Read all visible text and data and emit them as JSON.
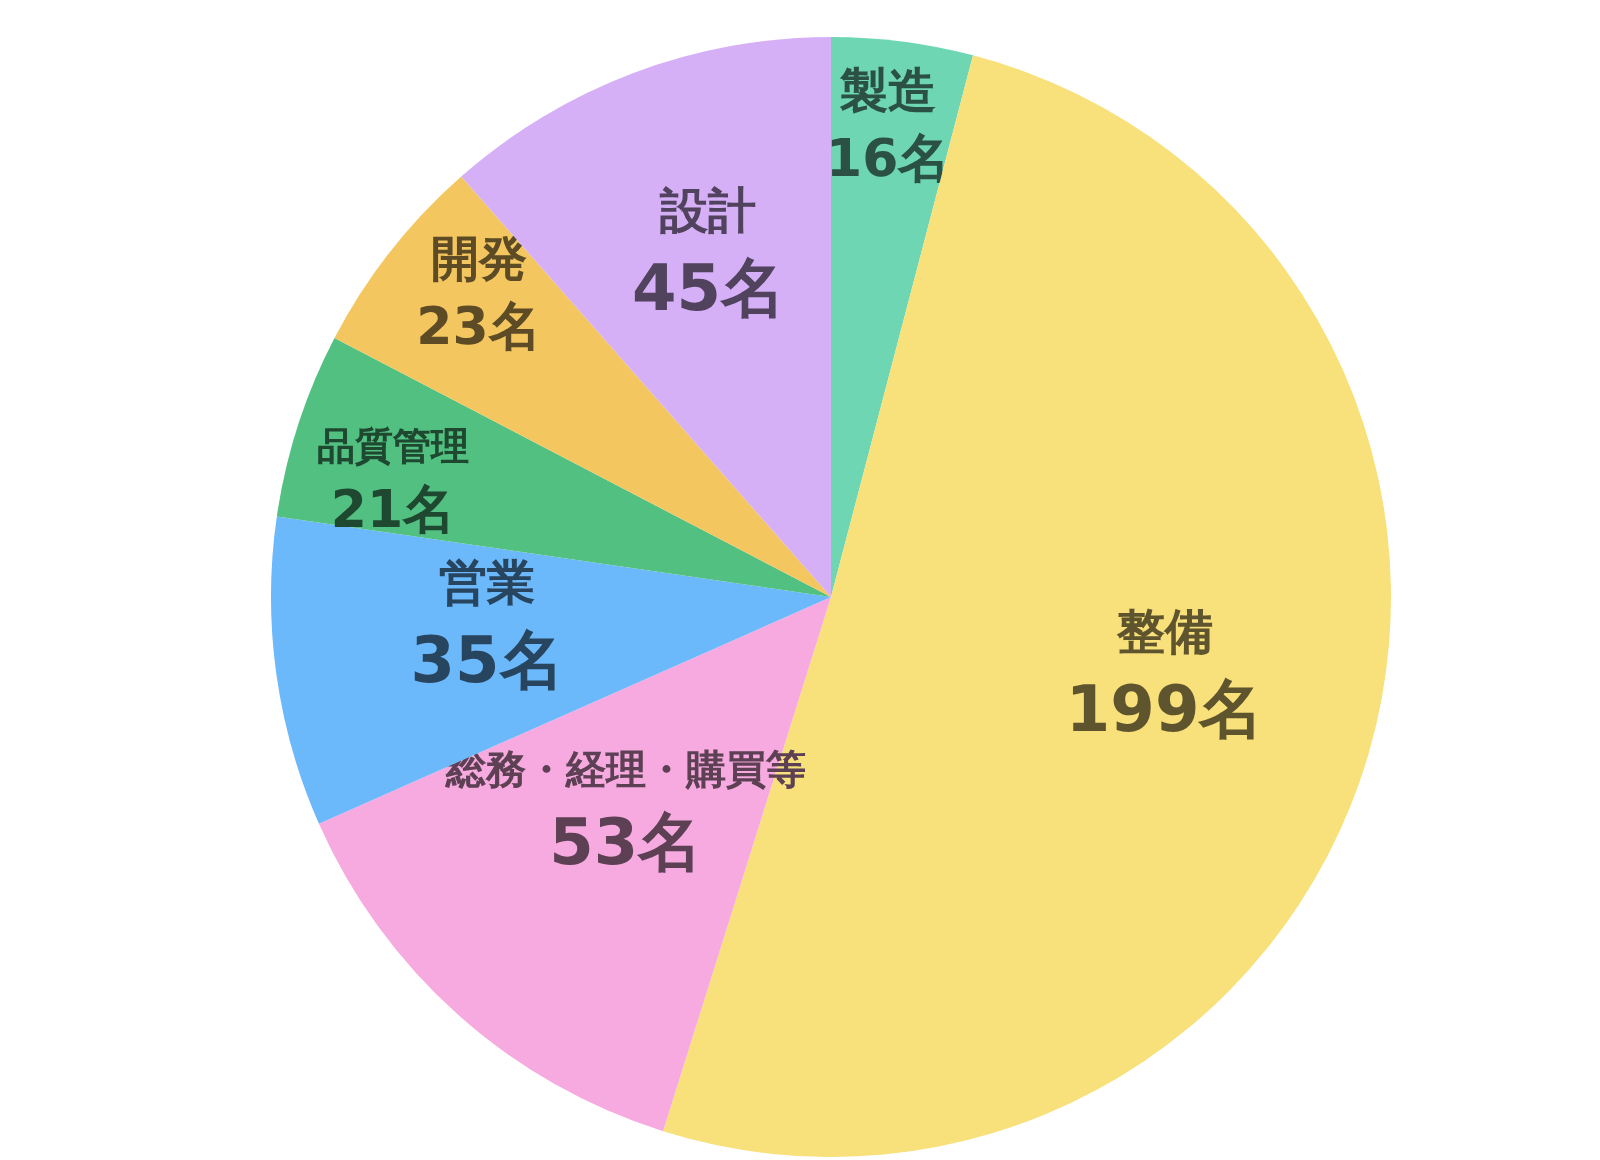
{
  "chart_data": {
    "type": "pie",
    "categories": [
      "製造",
      "整備",
      "総務・経理・購買等",
      "営業",
      "品質管理",
      "開発",
      "設計"
    ],
    "values": [
      16,
      199,
      53,
      35,
      21,
      23,
      45
    ],
    "colors": [
      "#6fd6b4",
      "#f8e07a",
      "#f6aadf",
      "#6bb8fb",
      "#52c080",
      "#f4c660",
      "#d6b0f7"
    ],
    "value_labels": [
      "16名",
      "199名",
      "53名",
      "35名",
      "21名",
      "23名",
      "45名"
    ]
  }
}
